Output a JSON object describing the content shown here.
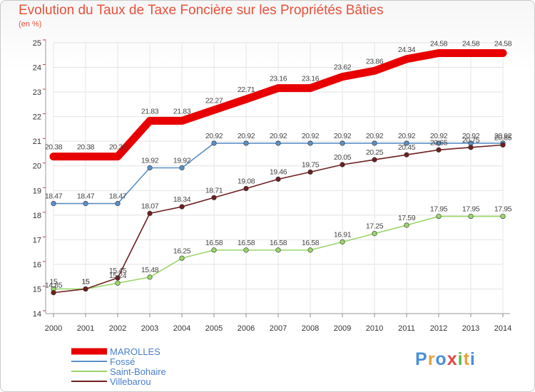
{
  "header": {
    "title": "Evolution du Taux de Taxe Foncière sur les Propriétés Bâties",
    "unit": "(en %)"
  },
  "brand": {
    "letters": [
      "P",
      "r",
      "o",
      "x",
      "i",
      "t",
      "i"
    ],
    "colors": [
      "#4a8fd8",
      "#e8a23a",
      "#4a8fd8",
      "#e04848",
      "#5cb84c",
      "#e8a23a",
      "#4a8fd8"
    ]
  },
  "chart_data": {
    "type": "line",
    "title": "Evolution du Taux de Taxe Foncière sur les Propriétés Bâties",
    "ylabel": "(en %)",
    "xlabel": "",
    "x": [
      "2000",
      "2001",
      "2002",
      "2003",
      "2004",
      "2005",
      "2006",
      "2007",
      "2008",
      "2009",
      "2010",
      "2011",
      "2012",
      "2013",
      "2014"
    ],
    "ylim": [
      14,
      25
    ],
    "yticks": [
      "14",
      "15",
      "16",
      "17",
      "18",
      "19",
      "20",
      "21",
      "22",
      "23",
      "24",
      "25"
    ],
    "legend": "bottom-left",
    "series": [
      {
        "name": "MAROLLES",
        "color": "#e80000",
        "style": "thick",
        "values": [
          20.38,
          20.38,
          20.38,
          21.83,
          21.83,
          22.27,
          22.71,
          23.16,
          23.16,
          23.62,
          23.86,
          24.34,
          24.58,
          24.58,
          24.58
        ],
        "labels": [
          "20.38",
          "20.38",
          "20.38",
          "21.83",
          "21.83",
          "22.27",
          "22.71",
          "23.16",
          "23.16",
          "23.62",
          "23.86",
          "24.34",
          "24.58",
          "24.58",
          "24.58"
        ]
      },
      {
        "name": "Fossé",
        "color": "#5b8fc7",
        "style": "thin",
        "values": [
          18.47,
          18.47,
          18.47,
          19.92,
          19.92,
          20.92,
          20.92,
          20.92,
          20.92,
          20.92,
          20.92,
          20.92,
          20.92,
          20.92,
          20.92
        ],
        "labels": [
          "18.47",
          "18.47",
          "18.47",
          "19.92",
          "19.92",
          "20.92",
          "20.92",
          "20.92",
          "20.92",
          "20.92",
          "20.92",
          "20.92",
          "20.92",
          "20.92",
          "20.92"
        ]
      },
      {
        "name": "Saint-Bohaire",
        "color": "#99d66a",
        "style": "thin",
        "values": [
          15,
          15,
          15.24,
          15.48,
          16.25,
          16.58,
          16.58,
          16.58,
          16.58,
          16.91,
          17.25,
          17.59,
          17.95,
          17.95,
          17.95
        ],
        "labels": [
          "15",
          "15",
          "15.24",
          "15.48",
          "16.25",
          "16.58",
          "16.58",
          "16.58",
          "16.58",
          "16.91",
          "17.25",
          "17.59",
          "17.95",
          "17.95",
          "17.95"
        ]
      },
      {
        "name": "Villebarou",
        "color": "#6e1e1e",
        "style": "thin",
        "values": [
          14.85,
          15,
          15.45,
          18.07,
          18.34,
          18.71,
          19.08,
          19.46,
          19.75,
          20.05,
          20.25,
          20.45,
          20.65,
          20.75,
          20.85
        ],
        "labels": [
          "14.85",
          "15",
          "15.45",
          "18.07",
          "18.34",
          "18.71",
          "19.08",
          "19.46",
          "19.75",
          "20.05",
          "20.25",
          "20.45",
          "20.65",
          "20.75",
          "20.85"
        ]
      }
    ]
  }
}
